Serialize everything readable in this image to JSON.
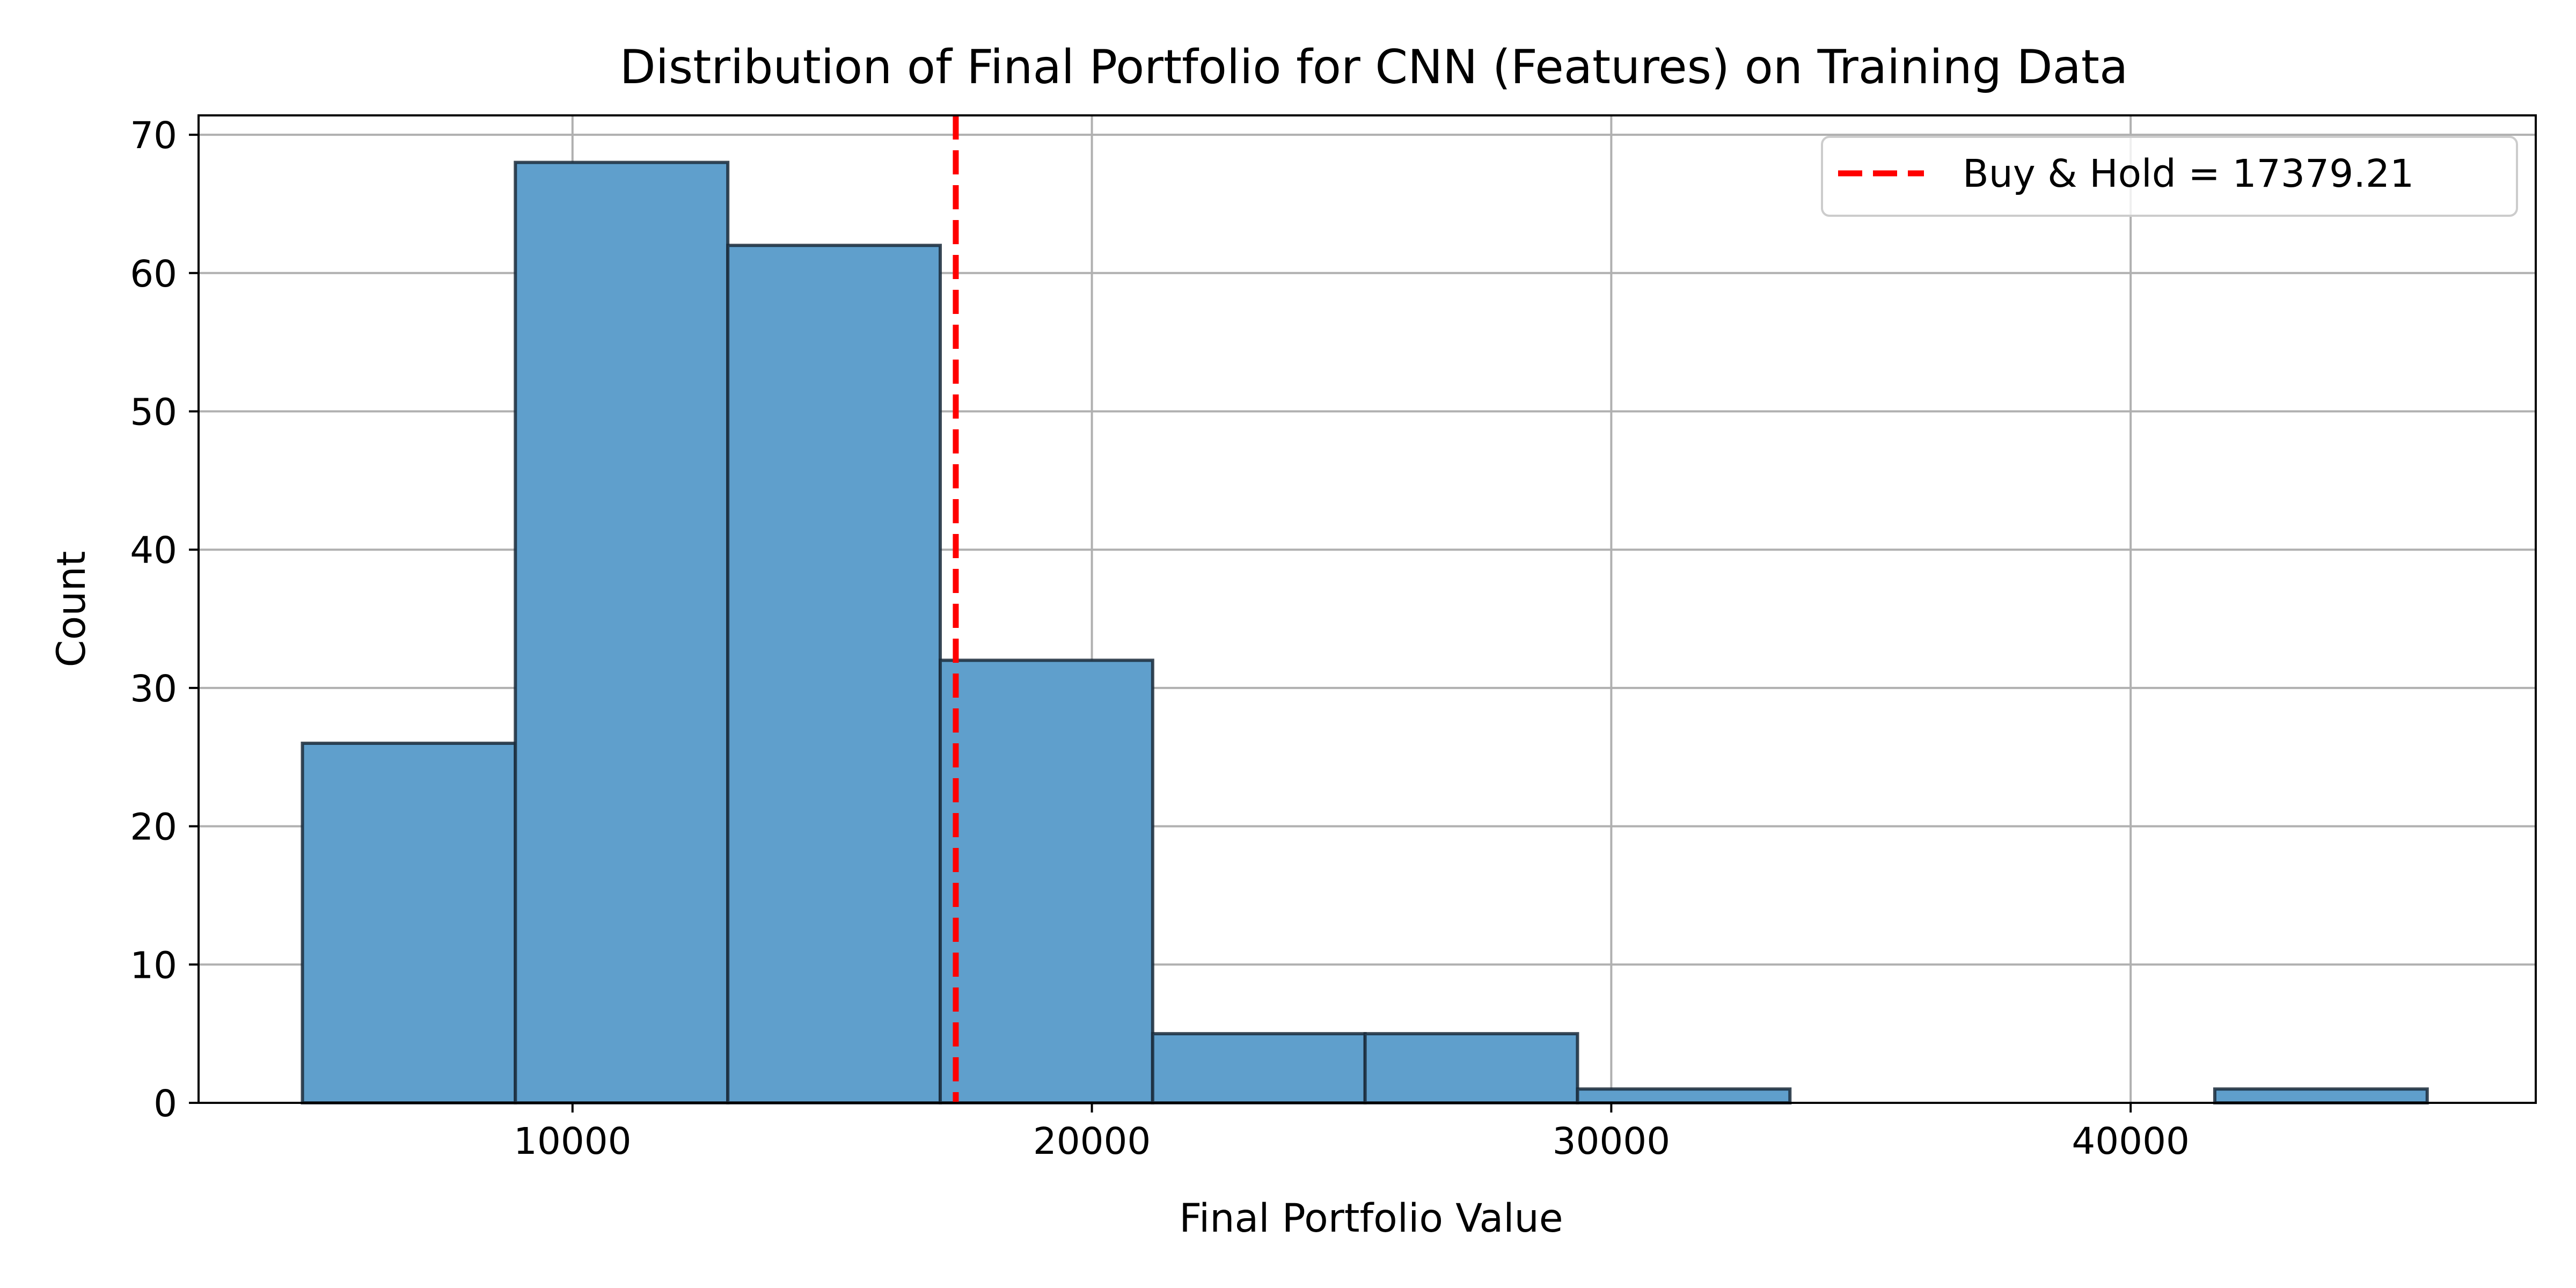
{
  "chart_data": {
    "type": "bar",
    "subtype": "histogram",
    "title": "Distribution of Final Portfolio for CNN (Features) on Training Data",
    "xlabel": "Final Portfolio Value",
    "ylabel": "Count",
    "xlim": [
      2800,
      47800
    ],
    "ylim": [
      0,
      71.4
    ],
    "xticks": [
      10000,
      20000,
      30000,
      40000
    ],
    "yticks": [
      0,
      10,
      20,
      30,
      40,
      50,
      60,
      70
    ],
    "grid": true,
    "bins": [
      {
        "x0": 4800,
        "x1": 8900,
        "count": 26
      },
      {
        "x0": 8900,
        "x1": 12990,
        "count": 68
      },
      {
        "x0": 12990,
        "x1": 17080,
        "count": 62
      },
      {
        "x0": 17080,
        "x1": 21170,
        "count": 32
      },
      {
        "x0": 21170,
        "x1": 25260,
        "count": 5
      },
      {
        "x0": 25260,
        "x1": 29350,
        "count": 5
      },
      {
        "x0": 29350,
        "x1": 33440,
        "count": 1
      },
      {
        "x0": 33440,
        "x1": 37530,
        "count": 0
      },
      {
        "x0": 37530,
        "x1": 41620,
        "count": 0
      },
      {
        "x0": 41620,
        "x1": 45710,
        "count": 1
      }
    ],
    "reference_line": {
      "value": 17379.21,
      "label": "Buy & Hold = 17379.21",
      "color": "#ff0000",
      "style": "dashed"
    },
    "bar_color": "#5f9fcc",
    "bar_edge_color": "#1a2a3a",
    "legend_position": "top-right"
  }
}
